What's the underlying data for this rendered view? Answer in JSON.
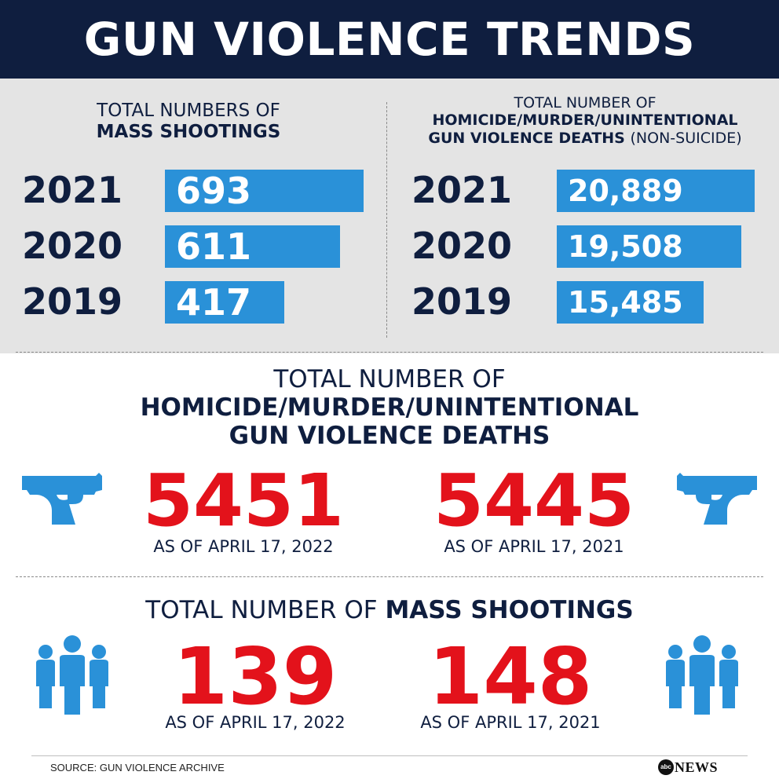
{
  "header": {
    "title": "GUN VIOLENCE TRENDS"
  },
  "left_panel": {
    "title_line1": "TOTAL NUMBERS OF",
    "title_line2": "MASS SHOOTINGS"
  },
  "right_panel": {
    "title_line1": "TOTAL NUMBER OF",
    "title_line2": "HOMICIDE/MURDER/UNINTENTIONAL",
    "title_line3": "GUN VIOLENCE DEATHS",
    "title_suffix": "(NON-SUICIDE)"
  },
  "deaths_section": {
    "title_line1": "TOTAL NUMBER OF",
    "title_line2": "HOMICIDE/MURDER/UNINTENTIONAL",
    "title_line3": "GUN VIOLENCE DEATHS",
    "value_2022": "5451",
    "label_2022": "AS OF APRIL 17, 2022",
    "value_2021": "5445",
    "label_2021": "AS OF APRIL 17, 2021"
  },
  "mass_section": {
    "title_normal": "TOTAL NUMBER OF",
    "title_bold": "MASS SHOOTINGS",
    "value_2022": "139",
    "label_2022": "AS OF APRIL 17, 2022",
    "value_2021": "148",
    "label_2021": "AS OF APRIL 17, 2021"
  },
  "footer": {
    "source": "SOURCE: GUN VIOLENCE ARCHIVE",
    "brand_mark": "abc",
    "brand_text": "NEWS"
  },
  "colors": {
    "navy": "#0f1e3f",
    "bar_blue": "#2a91d8",
    "red": "#e3121b",
    "panel_gray": "#e4e4e4"
  },
  "chart_data": [
    {
      "type": "bar",
      "orientation": "horizontal",
      "title": "TOTAL NUMBERS OF MASS SHOOTINGS",
      "categories": [
        "2021",
        "2020",
        "2019"
      ],
      "values": [
        693,
        611,
        417
      ],
      "value_labels": [
        "693",
        "611",
        "417"
      ]
    },
    {
      "type": "bar",
      "orientation": "horizontal",
      "title": "TOTAL NUMBER OF HOMICIDE/MURDER/UNINTENTIONAL GUN VIOLENCE DEATHS (NON-SUICIDE)",
      "categories": [
        "2021",
        "2020",
        "2019"
      ],
      "values": [
        20889,
        19508,
        15485
      ],
      "value_labels": [
        "20,889",
        "19,508",
        "15,485"
      ]
    }
  ]
}
